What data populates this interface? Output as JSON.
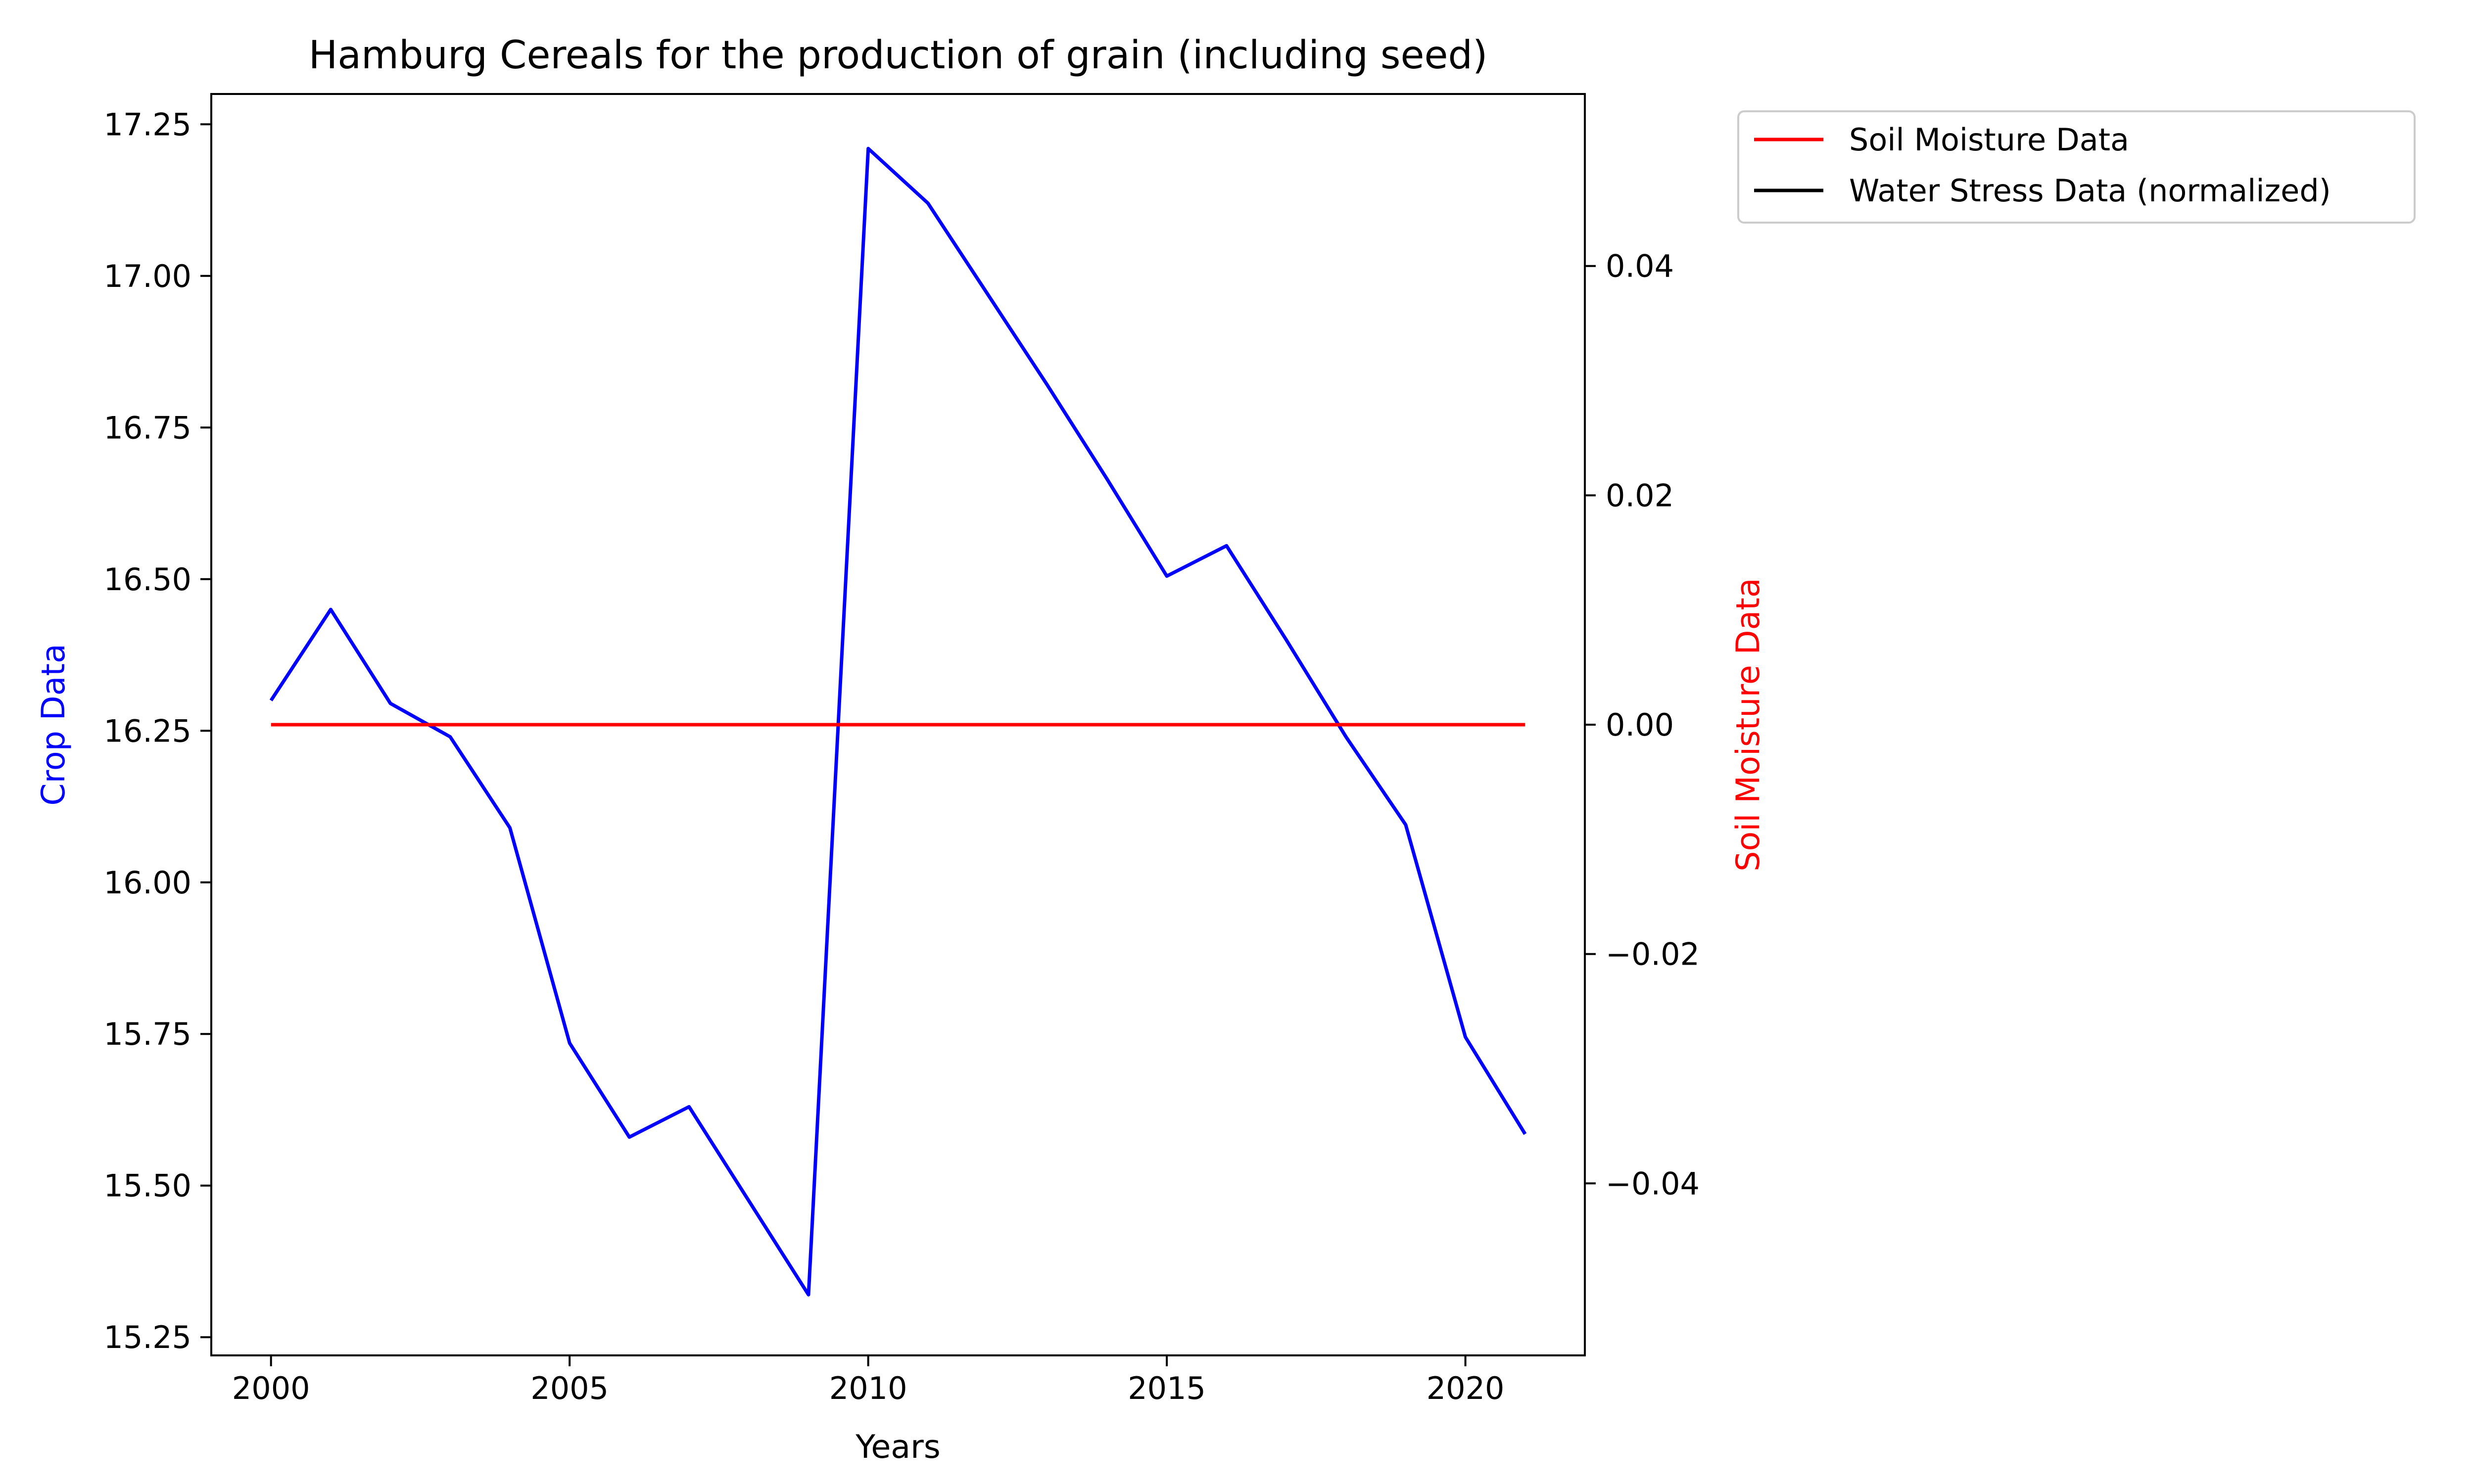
{
  "chart_data": {
    "type": "line",
    "title": "Hamburg Cereals for the production of grain (including seed)",
    "xlabel": "Years",
    "ylabel_left": "Crop Data",
    "ylabel_right": "Soil Moisture Data",
    "xlim": [
      1999,
      2022
    ],
    "ylim_left": [
      15.22,
      17.3
    ],
    "ylim_right": [
      -0.055,
      0.055
    ],
    "x_ticks": [
      2000,
      2005,
      2010,
      2015,
      2020
    ],
    "y_ticks_left": [
      "15.25",
      "15.50",
      "15.75",
      "16.00",
      "16.25",
      "16.50",
      "16.75",
      "17.00",
      "17.25"
    ],
    "y_ticks_right": [
      "−0.04",
      "−0.02",
      "0.00",
      "0.02",
      "0.04"
    ],
    "y_ticks_right_values": [
      -0.04,
      -0.02,
      0.0,
      0.02,
      0.04
    ],
    "y_ticks_left_values": [
      15.25,
      15.5,
      15.75,
      16.0,
      16.25,
      16.5,
      16.75,
      17.0,
      17.25
    ],
    "x": [
      2000,
      2001,
      2002,
      2003,
      2004,
      2005,
      2006,
      2007,
      2008,
      2009,
      2010,
      2011,
      2012,
      2013,
      2014,
      2015,
      2016,
      2017,
      2018,
      2019,
      2020,
      2021
    ],
    "series": [
      {
        "name": "Crop Data",
        "axis": "left",
        "color": "#0000ff",
        "values": [
          16.3,
          16.45,
          16.295,
          16.24,
          16.09,
          15.735,
          15.58,
          15.63,
          15.475,
          15.32,
          17.21,
          17.12,
          16.97,
          16.82,
          16.665,
          16.505,
          16.555,
          16.4,
          16.24,
          16.095,
          15.745,
          15.585
        ]
      },
      {
        "name": "Soil Moisture Data",
        "axis": "right",
        "color": "#ff0000",
        "values": [
          0,
          0,
          0,
          0,
          0,
          0,
          0,
          0,
          0,
          0,
          0,
          0,
          0,
          0,
          0,
          0,
          0,
          0,
          0,
          0,
          0,
          0
        ]
      }
    ],
    "legend": {
      "placement": "outside-top-right",
      "entries": [
        {
          "label": "Soil Moisture Data",
          "color": "#ff0000"
        },
        {
          "label": "Water Stress Data (normalized)",
          "color": "#000000"
        }
      ]
    },
    "colors": {
      "left_axis_label": "#0000ff",
      "right_axis_label": "#ff0000"
    },
    "grid": false
  }
}
